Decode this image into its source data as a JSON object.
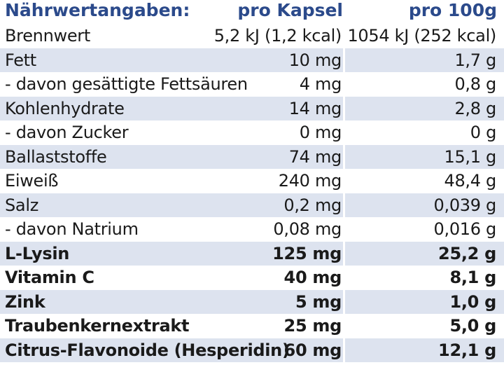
{
  "header": {
    "title": "Nährwertangaben:",
    "col_capsule": "pro Kapsel",
    "col_100g": "pro 100g"
  },
  "rows": [
    {
      "name": "Brennwert",
      "per_capsule": "5,2 kJ (1,2 kcal)",
      "per_100g": "1054 kJ (252 kcal)",
      "bold": false
    },
    {
      "name": "Fett",
      "per_capsule": "10 mg",
      "per_100g": "1,7 g",
      "bold": false
    },
    {
      "name": "- davon gesättigte Fettsäuren",
      "per_capsule": "4 mg",
      "per_100g": "0,8 g",
      "bold": false
    },
    {
      "name": "Kohlenhydrate",
      "per_capsule": "14 mg",
      "per_100g": "2,8 g",
      "bold": false
    },
    {
      "name": "- davon Zucker",
      "per_capsule": "0 mg",
      "per_100g": "0 g",
      "bold": false
    },
    {
      "name": "Ballaststoffe",
      "per_capsule": "74 mg",
      "per_100g": "15,1 g",
      "bold": false
    },
    {
      "name": "Eiweiß",
      "per_capsule": "240 mg",
      "per_100g": "48,4 g",
      "bold": false
    },
    {
      "name": "Salz",
      "per_capsule": "0,2 mg",
      "per_100g": "0,039 g",
      "bold": false
    },
    {
      "name": "- davon Natrium",
      "per_capsule": "0,08 mg",
      "per_100g": "0,016 g",
      "bold": false
    },
    {
      "name": "L-Lysin",
      "per_capsule": "125 mg",
      "per_100g": "25,2 g",
      "bold": true
    },
    {
      "name": "Vitamin C",
      "per_capsule": "40 mg",
      "per_100g": "8,1 g",
      "bold": true
    },
    {
      "name": "Zink",
      "per_capsule": "5 mg",
      "per_100g": "1,0 g",
      "bold": true
    },
    {
      "name": "Traubenkernextrakt",
      "per_capsule": "25 mg",
      "per_100g": "5,0 g",
      "bold": true
    },
    {
      "name": "Citrus-Flavonoide (Hesperidin)",
      "per_capsule": "60 mg",
      "per_100g": "12,1 g",
      "bold": true
    }
  ],
  "colors": {
    "header_text": "#2b4a8b",
    "stripe": "#dde3ef",
    "text": "#1a1a1a"
  }
}
